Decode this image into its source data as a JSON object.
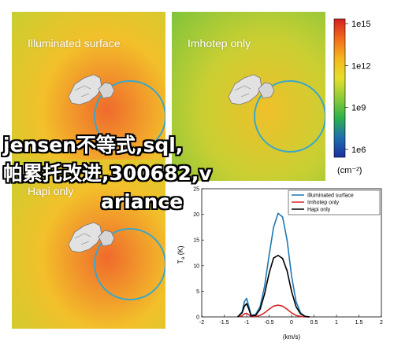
{
  "panels": [
    {
      "id": "illuminated",
      "title": "Illuminated surface",
      "bg_center": "#f06a2c",
      "bg_mid": "#f2c02a",
      "bg_edge": "#c8cf30"
    },
    {
      "id": "imhotep",
      "title": "Imhotep only",
      "bg_center": "#efc02a",
      "bg_mid": "#c9cf33",
      "bg_edge": "#7fc43a"
    },
    {
      "id": "hapi",
      "title": "Hapi only",
      "bg_center": "#f06a2c",
      "bg_mid": "#f2c02a",
      "bg_edge": "#c8cf30"
    }
  ],
  "colorbar": {
    "ticks": [
      "1e15",
      "1e12",
      "1e9",
      "1e6"
    ],
    "unit": "(cm⁻²)",
    "colors": [
      "#d21f1f",
      "#f26b1d",
      "#f5b71f",
      "#e5de2a",
      "#8fcb39",
      "#2db24b",
      "#1e6fae",
      "#1b2fa0"
    ]
  },
  "overlay_text": [
    "jensen不等式,sql,",
    "帕累托改进,300682,v",
    "ariance"
  ],
  "chart_data": {
    "type": "line",
    "xlabel": "(km/s)",
    "ylabel": "T_a (K)",
    "xlim": [
      -2,
      2
    ],
    "ylim": [
      0,
      25
    ],
    "xticks": [
      "-2",
      "-1.5",
      "-1",
      "-0.5",
      "0",
      "0.5",
      "1",
      "1.5",
      "2"
    ],
    "yticks": [
      "0",
      "5",
      "10",
      "15",
      "20",
      "25"
    ],
    "legend_position": "top-right",
    "x": [
      -1.2,
      -1.1,
      -1.05,
      -1.0,
      -0.95,
      -0.9,
      -0.8,
      -0.7,
      -0.6,
      -0.5,
      -0.4,
      -0.3,
      -0.2,
      -0.1,
      0.0,
      0.1,
      0.2,
      0.3,
      0.4
    ],
    "series": [
      {
        "name": "Illuminated surface",
        "color": "#1f77b4",
        "values": [
          0,
          1.0,
          3.0,
          3.6,
          2.0,
          0.3,
          0.5,
          2.0,
          6.0,
          12.0,
          17.5,
          20.2,
          19.5,
          15.0,
          8.0,
          3.0,
          0.8,
          0.1,
          0
        ]
      },
      {
        "name": "Imhotep only",
        "color": "#d62728",
        "values": [
          0,
          0.2,
          0.6,
          0.7,
          0.4,
          0.1,
          0.1,
          0.3,
          0.8,
          1.5,
          2.1,
          2.3,
          2.1,
          1.5,
          0.8,
          0.3,
          0.1,
          0.0,
          0
        ]
      },
      {
        "name": "Hapi only",
        "color": "#000000",
        "values": [
          0,
          0.8,
          2.1,
          2.6,
          1.5,
          0.2,
          0.3,
          1.5,
          4.5,
          8.5,
          11.5,
          12.0,
          11.4,
          9.0,
          5.0,
          2.0,
          0.6,
          0.1,
          0
        ]
      }
    ]
  }
}
